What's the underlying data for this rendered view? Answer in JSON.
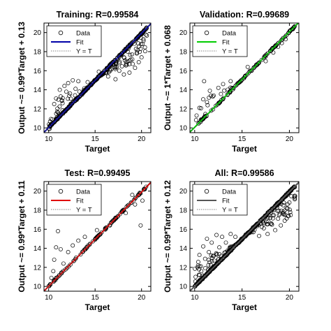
{
  "chart_data": [
    {
      "type": "scatter",
      "title": "Training: R=0.99584",
      "xlabel": "Target",
      "ylabel": "Output ~= 0.99*Target + 0.13",
      "xlim": [
        9.5,
        21
      ],
      "ylim": [
        9.5,
        21
      ],
      "xticks": [
        "10",
        "15",
        "20"
      ],
      "yticks": [
        "10",
        "12",
        "14",
        "16",
        "18",
        "20"
      ],
      "fit": {
        "slope": 0.99,
        "intercept": 0.13,
        "color": "#0000a8"
      },
      "identity_line": true,
      "legend": {
        "position": "top-left",
        "entries": [
          "Data",
          "Fit",
          "Y = T"
        ]
      },
      "spread_below": "right",
      "spread_above": "left",
      "series": [
        {
          "name": "Data",
          "values": [
            [
              10.1,
              9.9
            ],
            [
              10.4,
              10.9
            ],
            [
              10.6,
              12.5
            ],
            [
              10.8,
              13.1
            ],
            [
              11.0,
              11.6
            ],
            [
              11.2,
              14.0
            ],
            [
              11.3,
              13.3
            ],
            [
              11.5,
              12.6
            ],
            [
              11.7,
              14.4
            ],
            [
              11.9,
              13.8
            ],
            [
              12.1,
              14.7
            ],
            [
              12.3,
              13.6
            ],
            [
              12.6,
              15.0
            ],
            [
              12.9,
              14.1
            ],
            [
              13.2,
              14.9
            ],
            [
              14.2,
              14.8
            ],
            [
              15.4,
              15.9
            ],
            [
              16.4,
              15.4
            ],
            [
              17.2,
              15.1
            ],
            [
              17.6,
              16.0
            ],
            [
              18.1,
              15.6
            ],
            [
              18.4,
              16.6
            ],
            [
              18.7,
              15.8
            ],
            [
              19.0,
              17.2
            ],
            [
              19.3,
              16.3
            ],
            [
              19.5,
              17.8
            ],
            [
              19.7,
              16.9
            ],
            [
              19.9,
              18.3
            ],
            [
              20.0,
              17.4
            ],
            [
              20.1,
              18.8
            ],
            [
              20.2,
              19.3
            ]
          ]
        }
      ]
    },
    {
      "type": "scatter",
      "title": "Validation: R=0.99689",
      "xlabel": "Target",
      "ylabel": "Output ~= 1*Target + 0.068",
      "xlim": [
        9.5,
        21
      ],
      "ylim": [
        9.5,
        21
      ],
      "xticks": [
        "10",
        "15",
        "20"
      ],
      "yticks": [
        "10",
        "12",
        "14",
        "16",
        "18",
        "20"
      ],
      "fit": {
        "slope": 1.0,
        "intercept": 0.068,
        "color": "#00cc00"
      },
      "identity_line": true,
      "legend": {
        "position": "top-left",
        "entries": [
          "Data",
          "Fit",
          "Y = T"
        ]
      },
      "spread_below": "none",
      "spread_above": "left",
      "series": [
        {
          "name": "Data",
          "values": [
            [
              10.2,
              11.3
            ],
            [
              10.5,
              12.1
            ],
            [
              10.9,
              13.0
            ],
            [
              11.0,
              14.9
            ],
            [
              11.3,
              12.7
            ],
            [
              11.6,
              13.9
            ],
            [
              12.0,
              13.4
            ],
            [
              12.5,
              14.2
            ],
            [
              13.0,
              14.6
            ],
            [
              13.8,
              14.9
            ],
            [
              15.6,
              16.4
            ],
            [
              17.5,
              17.0
            ],
            [
              18.3,
              17.9
            ],
            [
              18.8,
              18.5
            ],
            [
              19.2,
              18.9
            ],
            [
              19.6,
              19.3
            ]
          ]
        }
      ]
    },
    {
      "type": "scatter",
      "title": "Test: R=0.99495",
      "xlabel": "Target",
      "ylabel": "Output ~= 0.99*Target + 0.11",
      "xlim": [
        9.5,
        21
      ],
      "ylim": [
        9.5,
        21
      ],
      "xticks": [
        "10",
        "15",
        "20"
      ],
      "yticks": [
        "10",
        "12",
        "14",
        "16",
        "18",
        "20"
      ],
      "fit": {
        "slope": 0.99,
        "intercept": 0.11,
        "color": "#e00000"
      },
      "identity_line": true,
      "legend": {
        "position": "top-left",
        "entries": [
          "Data",
          "Fit",
          "Y = T"
        ]
      },
      "spread_below": "none",
      "spread_above": "none",
      "series": [
        {
          "name": "Data",
          "values": [
            [
              10.1,
              9.3
            ],
            [
              10.3,
              10.9
            ],
            [
              10.5,
              11.6
            ],
            [
              10.6,
              12.8
            ],
            [
              10.8,
              14.1
            ],
            [
              11.0,
              15.8
            ],
            [
              11.3,
              13.9
            ],
            [
              11.6,
              12.4
            ],
            [
              12.1,
              13.6
            ],
            [
              12.6,
              14.3
            ],
            [
              13.2,
              14.8
            ],
            [
              13.9,
              15.2
            ],
            [
              15.2,
              15.9
            ],
            [
              16.6,
              16.4
            ],
            [
              17.4,
              17.3
            ],
            [
              18.3,
              17.7
            ],
            [
              19.0,
              19.6
            ],
            [
              19.3,
              18.6
            ],
            [
              19.9,
              16.4
            ],
            [
              20.1,
              19.0
            ]
          ]
        }
      ]
    },
    {
      "type": "scatter",
      "title": "All: R=0.99586",
      "xlabel": "Target",
      "ylabel": "Output ~= 0.99*Target + 0.12",
      "xlim": [
        9.5,
        21
      ],
      "ylim": [
        9.5,
        21
      ],
      "xticks": [
        "10",
        "15",
        "20"
      ],
      "yticks": [
        "10",
        "12",
        "14",
        "16",
        "18",
        "20"
      ],
      "fit": {
        "slope": 0.99,
        "intercept": 0.12,
        "color": "#555555"
      },
      "identity_line": true,
      "legend": {
        "position": "top-left",
        "entries": [
          "Data",
          "Fit",
          "Y = T"
        ]
      },
      "spread_below": "right",
      "spread_above": "left",
      "series": [
        {
          "name": "Data",
          "values": [
            [
              10.1,
              11.0
            ],
            [
              10.3,
              12.0
            ],
            [
              10.5,
              13.3
            ],
            [
              10.7,
              11.6
            ],
            [
              10.9,
              14.2
            ],
            [
              11.1,
              12.9
            ],
            [
              11.3,
              15.0
            ],
            [
              11.5,
              13.6
            ],
            [
              11.8,
              14.6
            ],
            [
              12.0,
              13.2
            ],
            [
              12.3,
              15.4
            ],
            [
              12.6,
              14.1
            ],
            [
              12.9,
              15.2
            ],
            [
              13.3,
              14.6
            ],
            [
              13.8,
              15.5
            ],
            [
              14.3,
              15.2
            ],
            [
              16.2,
              15.7
            ],
            [
              16.8,
              15.3
            ],
            [
              17.3,
              16.1
            ],
            [
              17.7,
              15.5
            ],
            [
              18.1,
              16.6
            ],
            [
              18.5,
              15.9
            ],
            [
              18.8,
              17.1
            ],
            [
              19.1,
              16.4
            ],
            [
              19.3,
              17.7
            ],
            [
              19.5,
              16.9
            ],
            [
              19.7,
              18.2
            ],
            [
              19.9,
              17.4
            ],
            [
              20.0,
              18.8
            ]
          ]
        }
      ]
    }
  ]
}
